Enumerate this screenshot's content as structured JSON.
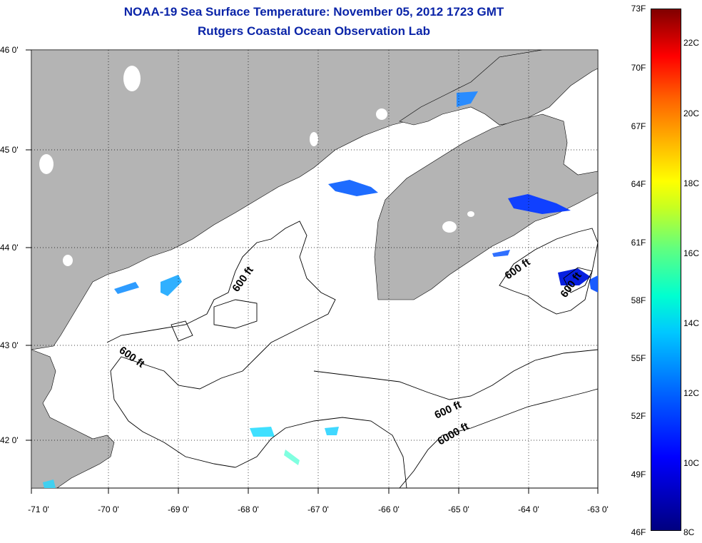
{
  "title": "NOAA-19 Sea Surface Temperature:  November 05, 2012 1723 GMT",
  "subtitle": "Rutgers Coastal Ocean Observation Lab",
  "lat_labels": [
    "46 0'",
    "45 0'",
    "44 0'",
    "43 0'",
    "42 0'"
  ],
  "lon_labels": [
    "-71 0'",
    "-70 0'",
    "-69 0'",
    "-68 0'",
    "-67 0'",
    "-66 0'",
    "-65 0'",
    "-64 0'",
    "-63 0'"
  ],
  "contours": [
    {
      "label": "600 ft"
    },
    {
      "label": "600 ft"
    },
    {
      "label": "600 ft"
    },
    {
      "label": "600 ft"
    },
    {
      "label": "600 ft"
    },
    {
      "label": "6000 ft"
    }
  ],
  "colorbar": {
    "f_labels": [
      "73F",
      "70F",
      "67F",
      "64F",
      "61F",
      "58F",
      "55F",
      "52F",
      "49F",
      "46F"
    ],
    "c_labels": [
      "22C",
      "20C",
      "18C",
      "16C",
      "14C",
      "12C",
      "10C",
      "8C"
    ]
  },
  "colors": {
    "land": "#b4b4b4",
    "title": "#0a24a8",
    "contour": "#000000"
  }
}
